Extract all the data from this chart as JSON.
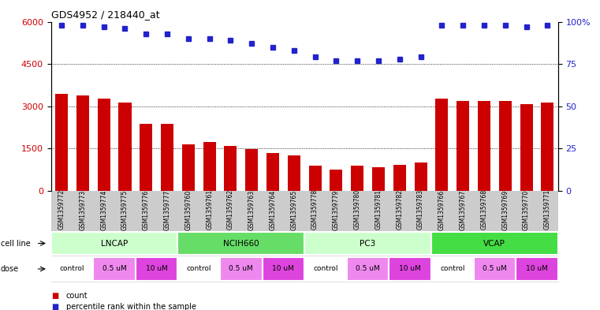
{
  "title": "GDS4952 / 218440_at",
  "samples": [
    "GSM1359772",
    "GSM1359773",
    "GSM1359774",
    "GSM1359775",
    "GSM1359776",
    "GSM1359777",
    "GSM1359760",
    "GSM1359761",
    "GSM1359762",
    "GSM1359763",
    "GSM1359764",
    "GSM1359765",
    "GSM1359778",
    "GSM1359779",
    "GSM1359780",
    "GSM1359781",
    "GSM1359782",
    "GSM1359783",
    "GSM1359766",
    "GSM1359767",
    "GSM1359768",
    "GSM1359769",
    "GSM1359770",
    "GSM1359771"
  ],
  "counts": [
    3450,
    3380,
    3270,
    3140,
    2380,
    2380,
    1650,
    1720,
    1600,
    1480,
    1330,
    1250,
    900,
    750,
    900,
    830,
    920,
    1000,
    3280,
    3190,
    3190,
    3180,
    3060,
    3140
  ],
  "percentile_ranks": [
    98,
    98,
    97,
    96,
    93,
    93,
    90,
    90,
    89,
    87,
    85,
    83,
    79,
    77,
    77,
    77,
    78,
    79,
    98,
    98,
    98,
    98,
    97,
    98
  ],
  "bar_color": "#cc0000",
  "dot_color": "#2222cc",
  "ylim_left": [
    0,
    6000
  ],
  "ylim_right": [
    0,
    100
  ],
  "yticks_left": [
    0,
    1500,
    3000,
    4500,
    6000
  ],
  "yticks_right": [
    0,
    25,
    50,
    75,
    100
  ],
  "cell_lines": [
    {
      "name": "LNCAP",
      "start": 0,
      "end": 6,
      "color": "#ccffcc"
    },
    {
      "name": "NCIH660",
      "start": 6,
      "end": 12,
      "color": "#66dd66"
    },
    {
      "name": "PC3",
      "start": 12,
      "end": 18,
      "color": "#ccffcc"
    },
    {
      "name": "VCAP",
      "start": 18,
      "end": 24,
      "color": "#44dd44"
    }
  ],
  "dose_groups": [
    {
      "label": "control",
      "start": 0,
      "end": 2,
      "color": "#ffffff"
    },
    {
      "label": "0.5 uM",
      "start": 2,
      "end": 4,
      "color": "#ee88ee"
    },
    {
      "label": "10 uM",
      "start": 4,
      "end": 6,
      "color": "#dd44dd"
    },
    {
      "label": "control",
      "start": 6,
      "end": 8,
      "color": "#ffffff"
    },
    {
      "label": "0.5 uM",
      "start": 8,
      "end": 10,
      "color": "#ee88ee"
    },
    {
      "label": "10 uM",
      "start": 10,
      "end": 12,
      "color": "#dd44dd"
    },
    {
      "label": "control",
      "start": 12,
      "end": 14,
      "color": "#ffffff"
    },
    {
      "label": "0.5 uM",
      "start": 14,
      "end": 16,
      "color": "#ee88ee"
    },
    {
      "label": "10 uM",
      "start": 16,
      "end": 18,
      "color": "#dd44dd"
    },
    {
      "label": "control",
      "start": 18,
      "end": 20,
      "color": "#ffffff"
    },
    {
      "label": "0.5 uM",
      "start": 20,
      "end": 22,
      "color": "#ee88ee"
    },
    {
      "label": "10 uM",
      "start": 22,
      "end": 24,
      "color": "#dd44dd"
    }
  ],
  "cell_line_label": "cell line",
  "dose_label": "dose",
  "legend_count_label": "count",
  "legend_dot_label": "percentile rank within the sample",
  "legend_count_color": "#cc0000",
  "legend_dot_color": "#2222cc",
  "xtick_bg_color": "#cccccc",
  "cell_line_bg": "#dddddd"
}
